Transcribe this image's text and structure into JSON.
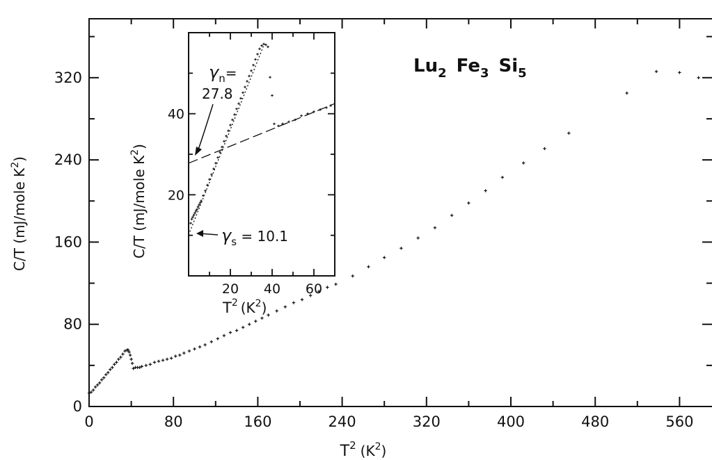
{
  "chart_data": [
    {
      "type": "scatter",
      "title": "",
      "annotation": {
        "formula": "Lu2 Fe3 Si5",
        "parts": [
          "Lu",
          "2",
          "Fe",
          "3",
          "Si",
          "5"
        ]
      },
      "xlabel": {
        "base": "T",
        "sup": "2",
        "unit": "(K",
        "unit_sup": "2",
        "close": ")"
      },
      "ylabel": {
        "base": "C/T  (mJ/mole  K",
        "sup": "2",
        "close": ")"
      },
      "xlim": [
        0,
        600
      ],
      "ylim": [
        0,
        380
      ],
      "xticks": [
        0,
        80,
        160,
        240,
        320,
        400,
        480,
        560
      ],
      "xtick_labels": [
        "0",
        "80",
        "160",
        "240",
        "320",
        "400",
        "480",
        "560"
      ],
      "yticks": [
        0,
        80,
        160,
        240,
        320
      ],
      "ytick_labels": [
        "0",
        "80",
        "160",
        "240",
        "320"
      ],
      "series": [
        {
          "x": [
            0,
            2,
            4,
            6,
            8,
            10,
            12,
            14,
            16,
            18,
            20,
            22,
            24,
            26,
            28,
            30,
            32,
            34,
            36,
            37,
            38,
            39,
            40,
            41,
            42,
            44,
            46,
            48,
            50,
            54,
            58,
            62,
            66,
            70,
            74,
            78,
            82,
            86,
            90,
            95,
            100,
            105,
            110,
            116,
            122,
            128,
            134,
            140,
            146,
            152,
            158,
            164,
            170,
            178,
            186,
            194,
            202,
            210,
            218,
            226,
            234,
            250,
            265,
            280,
            296,
            312,
            328,
            344,
            360,
            376,
            392,
            412,
            432,
            455,
            510,
            538,
            560,
            578
          ],
          "y": [
            13,
            14,
            16,
            19,
            21,
            23,
            26,
            28,
            31,
            33,
            36,
            38,
            41,
            43,
            46,
            48,
            51,
            54,
            55,
            55,
            53,
            50,
            46,
            42,
            37,
            38,
            38,
            38,
            39,
            40,
            41,
            43,
            44,
            45,
            46,
            47,
            49,
            50,
            52,
            54,
            56,
            58,
            60,
            63,
            66,
            69,
            72,
            74,
            77,
            80,
            83,
            86,
            89,
            93,
            97,
            101,
            104,
            108,
            112,
            116,
            119,
            127,
            136,
            145,
            154,
            164,
            174,
            186,
            198,
            210,
            223,
            237,
            251,
            266,
            305,
            326,
            325,
            320
          ]
        }
      ]
    },
    {
      "type": "scatter",
      "title": "",
      "xlabel": {
        "base": "T",
        "sup": "2",
        "unit": "(K",
        "unit_sup": "2",
        "close": ")"
      },
      "ylabel": {
        "base": "C/T  (mJ/mole  K",
        "sup": "2",
        "close": ")"
      },
      "xlim": [
        0,
        70
      ],
      "ylim": [
        0,
        60
      ],
      "xticks": [
        20,
        40,
        60
      ],
      "xtick_labels": [
        "20",
        "40",
        "60"
      ],
      "yticks": [
        20,
        40
      ],
      "ytick_labels": [
        "20",
        "40"
      ],
      "annotations": {
        "gamma_n_symbol": "γ",
        "gamma_n_sub": "n",
        "gamma_n_eq": "=",
        "gamma_n_value": "27.8",
        "gamma_s_symbol": "γ",
        "gamma_s_sub": "s",
        "gamma_s_eq": " = 10.1"
      },
      "extrapolations": [
        {
          "x": [
            0,
            70
          ],
          "y": [
            27.8,
            42.5
          ]
        },
        {
          "x": [
            0,
            36
          ],
          "y": [
            10.1,
            56.9
          ]
        }
      ],
      "series": [
        {
          "x": [
            1.0,
            1.5,
            2.0,
            2.5,
            3.0,
            3.5,
            4.0,
            4.5,
            5.0,
            5.5,
            6.0,
            7.0,
            8.0,
            9.0,
            10.0,
            11.0,
            12.0,
            13.0,
            14.0,
            15.0,
            16.0,
            17.0,
            18.0,
            19.0,
            20.0,
            21.0,
            22.0,
            23.0,
            24.0,
            25.0,
            26.0,
            27.0,
            28.0,
            29.0,
            30.0,
            31.0,
            32.0,
            33.0,
            34.0,
            35.0,
            36.0,
            37.0,
            38.0,
            39.0,
            40.0,
            41.0,
            43.0,
            45.0,
            48.0,
            51.0,
            54.0,
            57.0,
            60.0,
            63.0,
            66.0,
            68.0
          ],
          "y": [
            13.0,
            14.0,
            14.5,
            15.0,
            15.5,
            16.0,
            16.4,
            17.0,
            17.5,
            18.0,
            18.5,
            19.8,
            21.0,
            22.4,
            23.8,
            25.0,
            26.4,
            27.8,
            29.2,
            30.5,
            31.8,
            33.2,
            34.5,
            35.8,
            37.2,
            38.5,
            39.8,
            41.2,
            42.5,
            43.8,
            45.2,
            46.6,
            48.0,
            49.3,
            50.6,
            52.0,
            53.4,
            54.7,
            56.0,
            56.8,
            57.2,
            57.0,
            56.5,
            49.0,
            44.5,
            37.5,
            37.0,
            37.5,
            38.0,
            38.5,
            39.5,
            40.0,
            40.5,
            41.0,
            41.5,
            42.0
          ]
        }
      ]
    }
  ],
  "colors": {
    "ink": "#111111",
    "background": "#ffffff"
  }
}
